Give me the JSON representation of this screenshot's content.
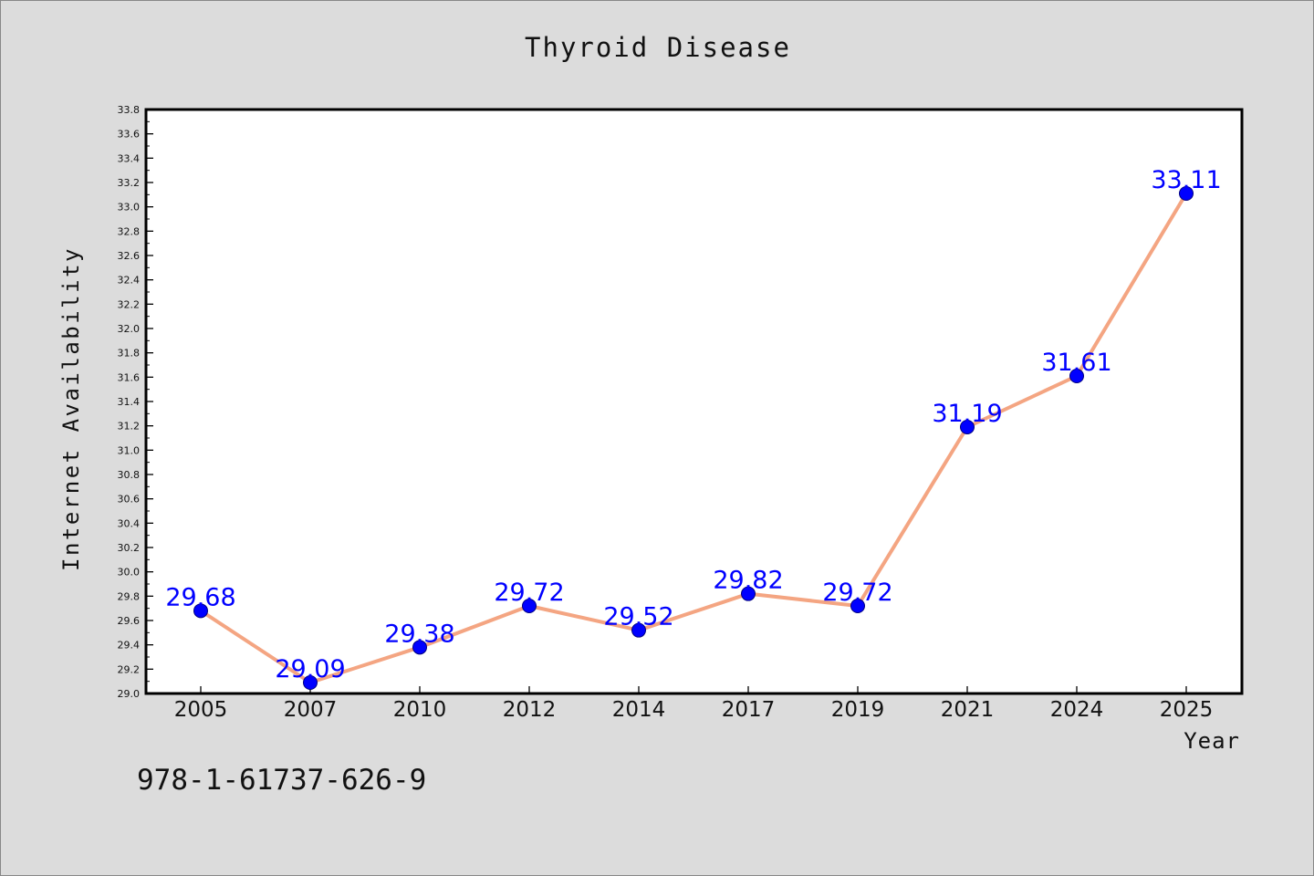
{
  "figure": {
    "background": "#dcdcdc",
    "plot_background": "#ffffff",
    "footer_text": "978-1-61737-626-9"
  },
  "chart_data": {
    "type": "line",
    "title": "Thyroid Disease",
    "xlabel": "Year",
    "ylabel": "Internet Availability",
    "categories": [
      "2005",
      "2007",
      "2010",
      "2012",
      "2014",
      "2017",
      "2019",
      "2021",
      "2024",
      "2025"
    ],
    "series": [
      {
        "values": [
          29.68,
          29.09,
          29.38,
          29.72,
          29.52,
          29.82,
          29.72,
          31.19,
          31.61,
          33.11
        ],
        "line_color": "#f4a582",
        "marker_color": "#0000ff",
        "label_color": "#0000ff"
      }
    ],
    "data_labels": [
      "29.68",
      "29.09",
      "29.38",
      "29.72",
      "29.52",
      "29.82",
      "29.72",
      "31.19",
      "31.61",
      "33.11"
    ],
    "ylim": [
      29.0,
      33.8
    ],
    "yticks": [
      "29.0",
      "29.2",
      "29.4",
      "29.6",
      "29.8",
      "30.0",
      "30.2",
      "30.4",
      "30.6",
      "30.8",
      "31.0",
      "31.2",
      "31.4",
      "31.6",
      "31.8",
      "32.0",
      "32.2",
      "32.4",
      "32.6",
      "32.8",
      "33.0",
      "33.2",
      "33.4",
      "33.6",
      "33.8"
    ],
    "grid": false,
    "legend": "none"
  }
}
